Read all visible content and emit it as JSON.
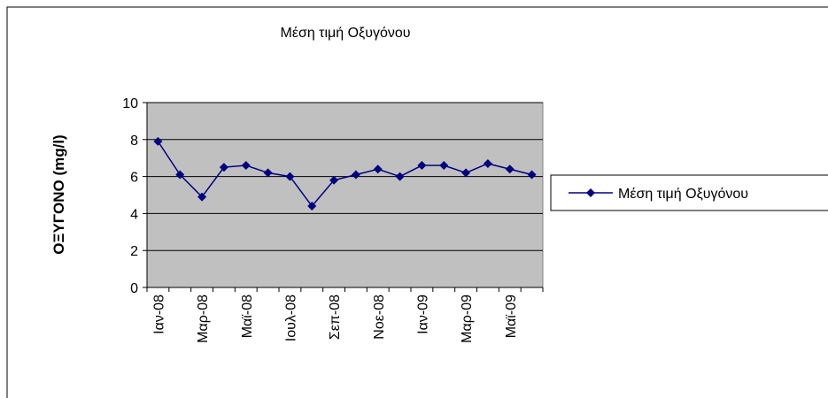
{
  "chart_data": {
    "type": "line",
    "title": "Μέση τιμή Οξυγόνου",
    "y_label": "ΟΞΥΓΟΝΟ (mg/l)",
    "categories": [
      "Ιαν-08",
      null,
      "Μαρ-08",
      null,
      "Μαϊ-08",
      null,
      "Ιουλ-08",
      null,
      "Σεπ-08",
      null,
      "Νοε-08",
      null,
      "Ιαν-09",
      null,
      "Μαρ-09",
      null,
      "Μαϊ-09",
      null
    ],
    "series": [
      {
        "name": "Μέση τιμή Οξυγόνου",
        "color": "#000080",
        "values": [
          7.9,
          6.1,
          4.9,
          6.5,
          6.6,
          6.2,
          6.0,
          4.4,
          5.8,
          6.1,
          6.4,
          6.0,
          6.6,
          6.6,
          6.2,
          6.7,
          6.4,
          6.1
        ]
      }
    ],
    "ylim": [
      0,
      10
    ],
    "yticks": [
      0,
      2,
      4,
      6,
      8,
      10
    ],
    "grid": true,
    "legend": "right",
    "plot_background": "#c0c0c0"
  }
}
